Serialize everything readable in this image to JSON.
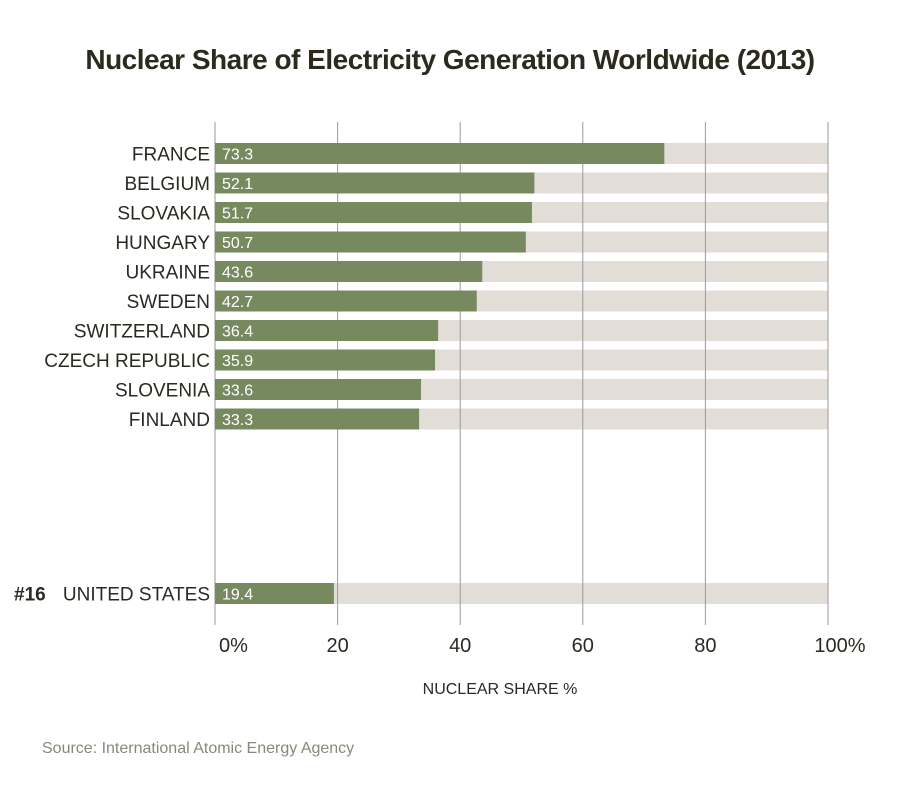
{
  "colors": {
    "bar": "#77895e",
    "track": "#e3ddd8",
    "grid": "#9a9a9a",
    "text": "#2a2a22",
    "source": "#8a8878"
  },
  "chart_data": {
    "type": "bar",
    "orientation": "horizontal",
    "title": "Nuclear Share of Electricity Generation Worldwide (2013)",
    "xlabel": "NUCLEAR SHARE %",
    "ylabel": "",
    "xlim": [
      0,
      100
    ],
    "ticks": [
      0,
      20,
      40,
      60,
      80,
      100
    ],
    "tick_labels": [
      "0%",
      "20",
      "40",
      "60",
      "80",
      "100%"
    ],
    "categories": [
      "FRANCE",
      "BELGIUM",
      "SLOVAKIA",
      "HUNGARY",
      "UKRAINE",
      "SWEDEN",
      "SWITZERLAND",
      "CZECH REPUBLIC",
      "SLOVENIA",
      "FINLAND",
      "UNITED STATES"
    ],
    "values": [
      73.3,
      52.1,
      51.7,
      50.7,
      43.6,
      42.7,
      36.4,
      35.9,
      33.6,
      33.3,
      19.4
    ],
    "value_labels": [
      "73.3",
      "52.1",
      "51.7",
      "50.7",
      "43.6",
      "42.7",
      "36.4",
      "35.9",
      "33.6",
      "33.3",
      "19.4"
    ],
    "highlight": {
      "category": "UNITED STATES",
      "rank_label": "#16"
    },
    "source": "Source: International Atomic Energy Agency"
  }
}
